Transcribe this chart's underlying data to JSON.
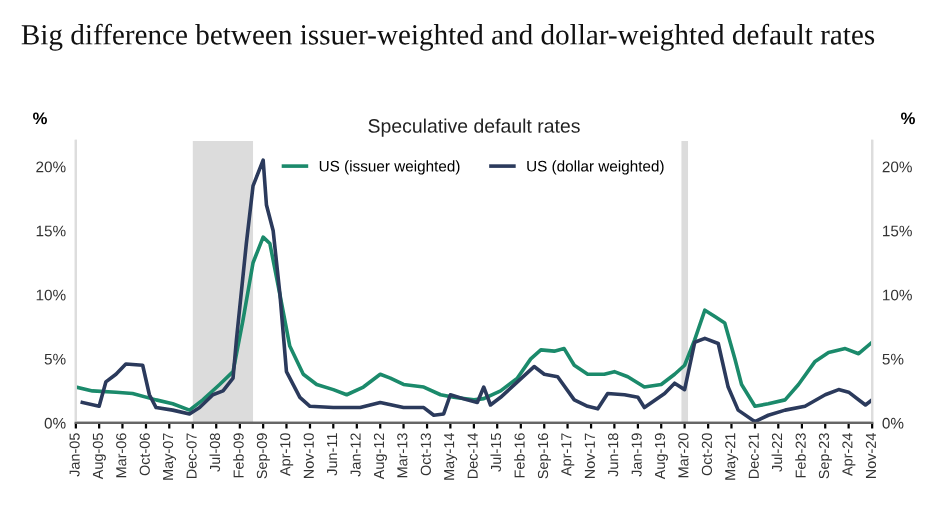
{
  "chart_data": {
    "type": "line",
    "title": "Big difference between issuer-weighted and dollar-weighted default rates",
    "subtitle": "Speculative default rates",
    "ylabel": "%",
    "y2label": "%",
    "xlim": [
      "2005-01",
      "2024-11"
    ],
    "xticks": [
      {
        "value": "2005-01",
        "label": "Jan-05"
      },
      {
        "value": "2005-08",
        "label": "Aug-05"
      },
      {
        "value": "2006-03",
        "label": "Mar-06"
      },
      {
        "value": "2006-10",
        "label": "Oct-06"
      },
      {
        "value": "2007-05",
        "label": "May-07"
      },
      {
        "value": "2007-12",
        "label": "Dec-07"
      },
      {
        "value": "2008-07",
        "label": "Jul-08"
      },
      {
        "value": "2009-02",
        "label": "Feb-09"
      },
      {
        "value": "2009-09",
        "label": "Sep-09"
      },
      {
        "value": "2010-04",
        "label": "Apr-10"
      },
      {
        "value": "2010-11",
        "label": "Nov-10"
      },
      {
        "value": "2011-06",
        "label": "Jun-11"
      },
      {
        "value": "2012-01",
        "label": "Jan-12"
      },
      {
        "value": "2012-08",
        "label": "Aug-12"
      },
      {
        "value": "2013-03",
        "label": "Mar-13"
      },
      {
        "value": "2013-10",
        "label": "Oct-13"
      },
      {
        "value": "2014-05",
        "label": "May-14"
      },
      {
        "value": "2014-12",
        "label": "Dec-14"
      },
      {
        "value": "2015-07",
        "label": "Jul-15"
      },
      {
        "value": "2016-02",
        "label": "Feb-16"
      },
      {
        "value": "2016-09",
        "label": "Sep-16"
      },
      {
        "value": "2017-04",
        "label": "Apr-17"
      },
      {
        "value": "2017-11",
        "label": "Nov-17"
      },
      {
        "value": "2018-06",
        "label": "Jun-18"
      },
      {
        "value": "2019-01",
        "label": "Jan-19"
      },
      {
        "value": "2019-08",
        "label": "Aug-19"
      },
      {
        "value": "2020-03",
        "label": "Mar-20"
      },
      {
        "value": "2020-10",
        "label": "Oct-20"
      },
      {
        "value": "2021-05",
        "label": "May-21"
      },
      {
        "value": "2021-12",
        "label": "Dec-21"
      },
      {
        "value": "2022-07",
        "label": "Jul-22"
      },
      {
        "value": "2023-02",
        "label": "Feb-23"
      },
      {
        "value": "2023-09",
        "label": "Sep-23"
      },
      {
        "value": "2024-04",
        "label": "Apr-24"
      },
      {
        "value": "2024-11",
        "label": "Nov-24"
      }
    ],
    "ylim": [
      0,
      22
    ],
    "yticks": [
      {
        "value": 0,
        "label": "0%"
      },
      {
        "value": 5,
        "label": "5%"
      },
      {
        "value": 10,
        "label": "10%"
      },
      {
        "value": 15,
        "label": "15%"
      },
      {
        "value": 20,
        "label": "20%"
      }
    ],
    "y2lim": [
      0,
      22
    ],
    "y2ticks": [
      {
        "value": 0,
        "label": "0%"
      },
      {
        "value": 5,
        "label": "5%"
      },
      {
        "value": 10,
        "label": "10%"
      },
      {
        "value": 15,
        "label": "15%"
      },
      {
        "value": 20,
        "label": "20%"
      }
    ],
    "bands": [
      {
        "axis": "x",
        "from": "2007-12",
        "to": "2009-06",
        "color": "#dcdcdc"
      },
      {
        "axis": "x",
        "from": "2020-02",
        "to": "2020-04",
        "color": "#dcdcdc"
      }
    ],
    "legend": "top",
    "grid": false,
    "marker": "none",
    "line_style": "solid",
    "series": [
      {
        "name": "US (issuer weighted)",
        "color": "#1b8a6b",
        "x": [
          "2005-01",
          "2005-06",
          "2006-01",
          "2006-06",
          "2007-01",
          "2007-06",
          "2007-11",
          "2008-03",
          "2008-08",
          "2008-12",
          "2009-03",
          "2009-06",
          "2009-09",
          "2009-11",
          "2010-02",
          "2010-05",
          "2010-09",
          "2011-01",
          "2011-06",
          "2011-10",
          "2012-03",
          "2012-08",
          "2012-11",
          "2013-03",
          "2013-09",
          "2014-02",
          "2014-06",
          "2014-12",
          "2015-03",
          "2015-08",
          "2016-01",
          "2016-05",
          "2016-08",
          "2016-12",
          "2017-03",
          "2017-06",
          "2017-10",
          "2018-03",
          "2018-06",
          "2018-10",
          "2019-03",
          "2019-08",
          "2019-12",
          "2020-03",
          "2020-06",
          "2020-09",
          "2020-12",
          "2021-03",
          "2021-06",
          "2021-08",
          "2021-12",
          "2022-04",
          "2022-09",
          "2023-01",
          "2023-06",
          "2023-10",
          "2024-03",
          "2024-07",
          "2024-11"
        ],
        "values": [
          2.8,
          2.5,
          2.4,
          2.3,
          1.8,
          1.5,
          1.0,
          1.8,
          3.0,
          4.0,
          8.0,
          12.5,
          14.5,
          14.0,
          10,
          6,
          3.8,
          3.0,
          2.6,
          2.2,
          2.8,
          3.8,
          3.5,
          3.0,
          2.8,
          2.2,
          2.0,
          1.8,
          1.9,
          2.5,
          3.5,
          5.0,
          5.7,
          5.6,
          5.8,
          4.5,
          3.8,
          3.8,
          4.0,
          3.6,
          2.8,
          3.0,
          3.8,
          4.5,
          6.5,
          8.8,
          8.3,
          7.8,
          5.0,
          3.0,
          1.3,
          1.5,
          1.8,
          3.0,
          4.8,
          5.5,
          5.8,
          5.4,
          6.3
        ]
      },
      {
        "name": "US (dollar weighted)",
        "color": "#2b3a5c",
        "x": [
          "2005-03",
          "2005-08",
          "2005-10",
          "2006-01",
          "2006-04",
          "2006-09",
          "2006-11",
          "2007-01",
          "2007-06",
          "2007-11",
          "2008-02",
          "2008-06",
          "2008-09",
          "2008-12",
          "2009-01",
          "2009-04",
          "2009-06",
          "2009-09",
          "2009-10",
          "2009-12",
          "2010-02",
          "2010-04",
          "2010-08",
          "2010-11",
          "2011-06",
          "2012-02",
          "2012-08",
          "2013-03",
          "2013-09",
          "2013-12",
          "2014-03",
          "2014-05",
          "2014-10",
          "2015-01",
          "2015-03",
          "2015-05",
          "2015-08",
          "2016-01",
          "2016-06",
          "2016-09",
          "2017-01",
          "2017-06",
          "2017-10",
          "2018-01",
          "2018-04",
          "2018-09",
          "2019-01",
          "2019-03",
          "2019-09",
          "2019-12",
          "2020-03",
          "2020-06",
          "2020-09",
          "2021-01",
          "2021-04",
          "2021-07",
          "2021-12",
          "2022-04",
          "2022-09",
          "2023-03",
          "2023-09",
          "2024-01",
          "2024-04",
          "2024-09",
          "2024-11"
        ],
        "values": [
          1.6,
          1.3,
          3.2,
          3.8,
          4.6,
          4.5,
          2.2,
          1.2,
          1.0,
          0.7,
          1.2,
          2.2,
          2.5,
          3.5,
          6.5,
          14,
          18.5,
          20.5,
          17,
          15,
          10,
          4.0,
          2.0,
          1.3,
          1.2,
          1.2,
          1.6,
          1.2,
          1.2,
          0.6,
          0.7,
          2.2,
          1.8,
          1.6,
          2.8,
          1.4,
          2.0,
          3.2,
          4.4,
          3.8,
          3.6,
          1.8,
          1.3,
          1.1,
          2.3,
          2.2,
          2.0,
          1.2,
          2.3,
          3.1,
          2.6,
          6.3,
          6.6,
          6.2,
          2.8,
          1.0,
          0.1,
          0.6,
          1.0,
          1.3,
          2.2,
          2.6,
          2.4,
          1.4,
          1.8
        ]
      }
    ]
  }
}
